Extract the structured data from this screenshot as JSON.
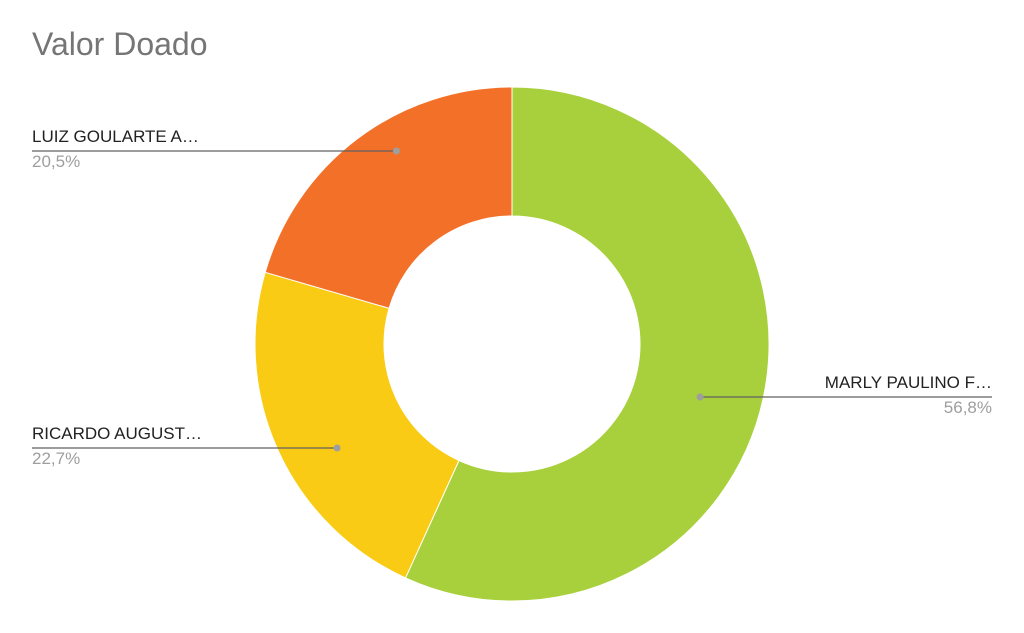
{
  "chart_data": {
    "type": "pie",
    "style": "donut",
    "title": "Valor Doado",
    "slices": [
      {
        "label": "MARLY PAULINO F…",
        "percent_label": "56,8%",
        "value": 56.8,
        "color": "#a8d03c"
      },
      {
        "label": "RICARDO AUGUST…",
        "percent_label": "22,7%",
        "value": 22.7,
        "color": "#f9cb14"
      },
      {
        "label": "LUIZ GOULARTE A…",
        "percent_label": "20,5%",
        "value": 20.5,
        "color": "#f37028"
      }
    ],
    "legend": "none",
    "labels": "outside"
  }
}
